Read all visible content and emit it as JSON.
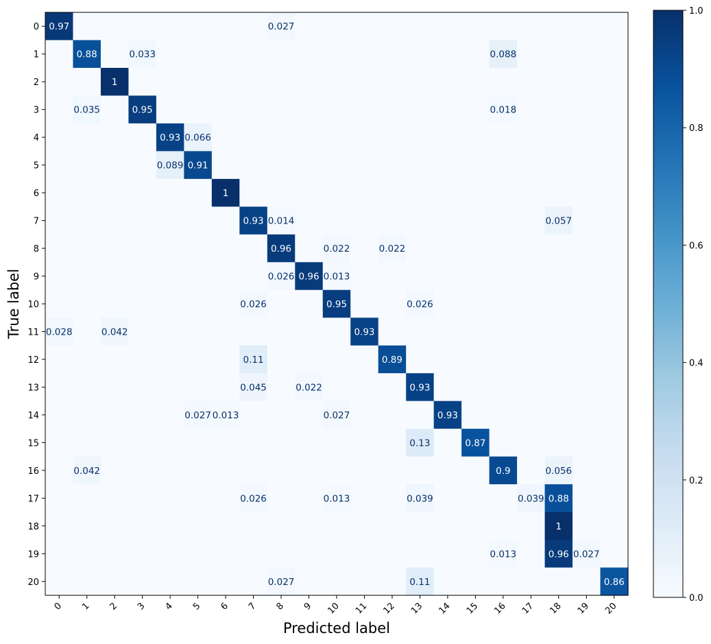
{
  "chart_data": {
    "type": "heatmap",
    "title": "",
    "xlabel": "Predicted label",
    "ylabel": "True label",
    "x_categories": [
      "0",
      "1",
      "2",
      "3",
      "4",
      "5",
      "6",
      "7",
      "8",
      "9",
      "10",
      "11",
      "12",
      "13",
      "14",
      "15",
      "16",
      "17",
      "18",
      "19",
      "20"
    ],
    "y_categories": [
      "0",
      "1",
      "2",
      "3",
      "4",
      "5",
      "6",
      "7",
      "8",
      "9",
      "10",
      "11",
      "12",
      "13",
      "14",
      "15",
      "16",
      "17",
      "18",
      "19",
      "20"
    ],
    "color_scale": {
      "name": "Blues",
      "min": 0.0,
      "max": 1.0,
      "ticks": [
        "0.0",
        "0.2",
        "0.4",
        "0.6",
        "0.8",
        "1.0"
      ]
    },
    "cells": [
      {
        "row": 0,
        "col": 0,
        "value": 0.97,
        "label": "0.97"
      },
      {
        "row": 0,
        "col": 8,
        "value": 0.027,
        "label": "0.027"
      },
      {
        "row": 1,
        "col": 1,
        "value": 0.88,
        "label": "0.88"
      },
      {
        "row": 1,
        "col": 3,
        "value": 0.033,
        "label": "0.033"
      },
      {
        "row": 1,
        "col": 16,
        "value": 0.088,
        "label": "0.088"
      },
      {
        "row": 2,
        "col": 2,
        "value": 1.0,
        "label": "1"
      },
      {
        "row": 3,
        "col": 1,
        "value": 0.035,
        "label": "0.035"
      },
      {
        "row": 3,
        "col": 3,
        "value": 0.95,
        "label": "0.95"
      },
      {
        "row": 3,
        "col": 16,
        "value": 0.018,
        "label": "0.018"
      },
      {
        "row": 4,
        "col": 4,
        "value": 0.93,
        "label": "0.93"
      },
      {
        "row": 4,
        "col": 5,
        "value": 0.066,
        "label": "0.066"
      },
      {
        "row": 5,
        "col": 4,
        "value": 0.089,
        "label": "0.089"
      },
      {
        "row": 5,
        "col": 5,
        "value": 0.91,
        "label": "0.91"
      },
      {
        "row": 6,
        "col": 6,
        "value": 1.0,
        "label": "1"
      },
      {
        "row": 7,
        "col": 7,
        "value": 0.93,
        "label": "0.93"
      },
      {
        "row": 7,
        "col": 8,
        "value": 0.014,
        "label": "0.014"
      },
      {
        "row": 7,
        "col": 18,
        "value": 0.057,
        "label": "0.057"
      },
      {
        "row": 8,
        "col": 8,
        "value": 0.96,
        "label": "0.96"
      },
      {
        "row": 8,
        "col": 10,
        "value": 0.022,
        "label": "0.022"
      },
      {
        "row": 8,
        "col": 12,
        "value": 0.022,
        "label": "0.022"
      },
      {
        "row": 9,
        "col": 8,
        "value": 0.026,
        "label": "0.026"
      },
      {
        "row": 9,
        "col": 9,
        "value": 0.96,
        "label": "0.96"
      },
      {
        "row": 9,
        "col": 10,
        "value": 0.013,
        "label": "0.013"
      },
      {
        "row": 10,
        "col": 7,
        "value": 0.026,
        "label": "0.026"
      },
      {
        "row": 10,
        "col": 10,
        "value": 0.95,
        "label": "0.95"
      },
      {
        "row": 10,
        "col": 13,
        "value": 0.026,
        "label": "0.026"
      },
      {
        "row": 11,
        "col": 0,
        "value": 0.028,
        "label": "0.028"
      },
      {
        "row": 11,
        "col": 2,
        "value": 0.042,
        "label": "0.042"
      },
      {
        "row": 11,
        "col": 11,
        "value": 0.93,
        "label": "0.93"
      },
      {
        "row": 12,
        "col": 7,
        "value": 0.11,
        "label": "0.11"
      },
      {
        "row": 12,
        "col": 12,
        "value": 0.89,
        "label": "0.89"
      },
      {
        "row": 13,
        "col": 7,
        "value": 0.045,
        "label": "0.045"
      },
      {
        "row": 13,
        "col": 9,
        "value": 0.022,
        "label": "0.022"
      },
      {
        "row": 13,
        "col": 13,
        "value": 0.93,
        "label": "0.93"
      },
      {
        "row": 14,
        "col": 5,
        "value": 0.027,
        "label": "0.027"
      },
      {
        "row": 14,
        "col": 6,
        "value": 0.013,
        "label": "0.013"
      },
      {
        "row": 14,
        "col": 10,
        "value": 0.027,
        "label": "0.027"
      },
      {
        "row": 14,
        "col": 14,
        "value": 0.93,
        "label": "0.93"
      },
      {
        "row": 15,
        "col": 13,
        "value": 0.13,
        "label": "0.13"
      },
      {
        "row": 15,
        "col": 15,
        "value": 0.87,
        "label": "0.87"
      },
      {
        "row": 16,
        "col": 1,
        "value": 0.042,
        "label": "0.042"
      },
      {
        "row": 16,
        "col": 16,
        "value": 0.9,
        "label": "0.9"
      },
      {
        "row": 16,
        "col": 18,
        "value": 0.056,
        "label": "0.056"
      },
      {
        "row": 17,
        "col": 7,
        "value": 0.026,
        "label": "0.026"
      },
      {
        "row": 17,
        "col": 10,
        "value": 0.013,
        "label": "0.013"
      },
      {
        "row": 17,
        "col": 13,
        "value": 0.039,
        "label": "0.039"
      },
      {
        "row": 17,
        "col": 17,
        "value": 0.039,
        "label": "0.039"
      },
      {
        "row": 17,
        "col": 18,
        "value": 0.88,
        "label": "0.88"
      },
      {
        "row": 18,
        "col": 18,
        "value": 1.0,
        "label": "1"
      },
      {
        "row": 19,
        "col": 16,
        "value": 0.013,
        "label": "0.013"
      },
      {
        "row": 19,
        "col": 18,
        "value": 0.96,
        "label": "0.96"
      },
      {
        "row": 19,
        "col": 19,
        "value": 0.027,
        "label": "0.027"
      },
      {
        "row": 20,
        "col": 8,
        "value": 0.027,
        "label": "0.027"
      },
      {
        "row": 20,
        "col": 13,
        "value": 0.11,
        "label": "0.11"
      },
      {
        "row": 20,
        "col": 20,
        "value": 0.86,
        "label": "0.86"
      }
    ],
    "default_cell_value": 0.0
  }
}
